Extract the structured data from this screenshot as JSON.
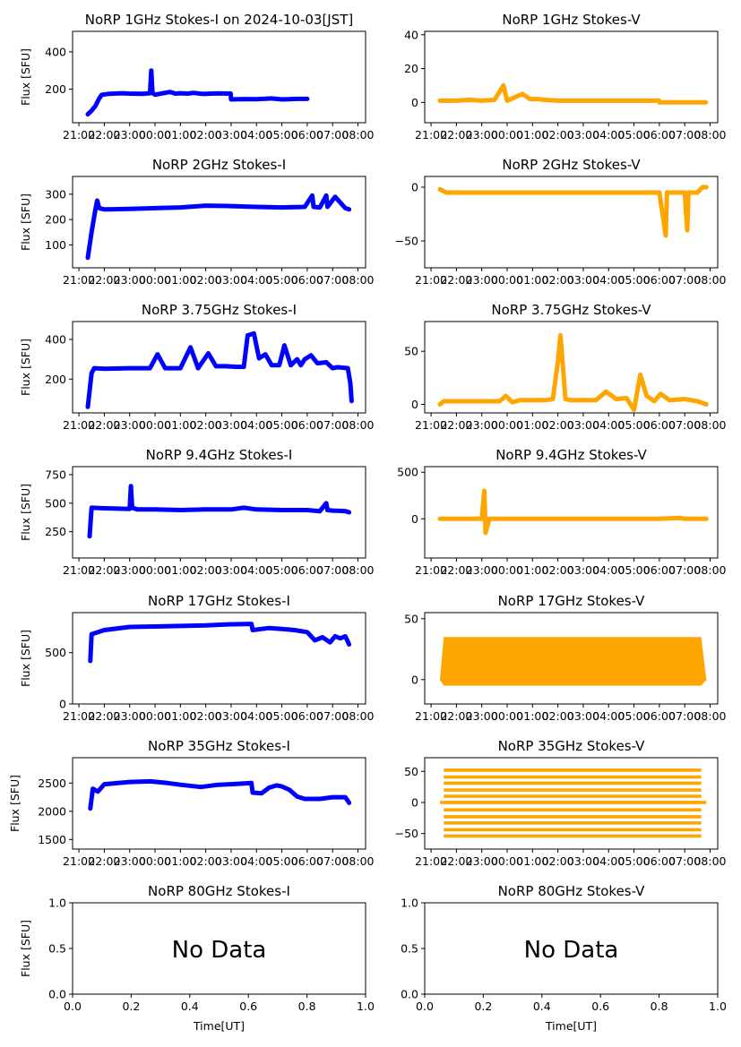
{
  "figure": {
    "time_tick_labels": [
      "21:00",
      "22:00",
      "23:00",
      "00:00",
      "01:00",
      "02:00",
      "03:00",
      "04:00",
      "05:00",
      "06:00",
      "07:00",
      "08:00"
    ],
    "ylabel": "Flux [SFU]",
    "xlabel": "Time[UT]",
    "stokes_i_color": "#0000ff",
    "stokes_v_color": "#ffa500"
  },
  "chart_data": [
    {
      "id": "i1",
      "type": "scatter",
      "title": "NoRP 1GHz Stokes-I on 2024-10-03[JST]",
      "ylabel": "Flux [SFU]",
      "xlim": [
        20.75,
        32.3
      ],
      "ylim": [
        20,
        510
      ],
      "yticks": [
        200,
        400
      ],
      "series": [
        {
          "name": "Stokes-I",
          "color": "#0000ff",
          "x": [
            21.35,
            21.5,
            21.65,
            21.8,
            21.9,
            22.2,
            22.7,
            23.0,
            23.5,
            23.8,
            23.85,
            23.9,
            24.0,
            24.3,
            24.6,
            24.8,
            25.0,
            25.3,
            25.5,
            25.9,
            26.2,
            26.5,
            26.98,
            27.0,
            27.5,
            28.0,
            28.6,
            29.0,
            29.6,
            30.0
          ],
          "y": [
            65,
            85,
            110,
            150,
            170,
            175,
            178,
            176,
            175,
            178,
            300,
            180,
            170,
            178,
            185,
            176,
            178,
            176,
            180,
            174,
            176,
            177,
            176,
            145,
            147,
            146,
            150,
            145,
            148,
            148
          ]
        }
      ]
    },
    {
      "id": "v1",
      "type": "scatter",
      "title": "NoRP 1GHz Stokes-V",
      "ylabel": "",
      "xlim": [
        20.75,
        32.3
      ],
      "ylim": [
        -12,
        42
      ],
      "yticks": [
        0,
        20,
        40
      ],
      "series": [
        {
          "name": "Stokes-V",
          "color": "#ffa500",
          "x": [
            21.35,
            22.0,
            22.5,
            23.0,
            23.5,
            23.85,
            24.0,
            24.3,
            24.6,
            24.9,
            25.2,
            25.5,
            26.0,
            26.5,
            27.0,
            27.5,
            28.0,
            28.5,
            29.0,
            29.99,
            30.0,
            31.0,
            31.83
          ],
          "y": [
            1,
            1,
            1.5,
            1,
            1.5,
            10,
            1,
            3,
            5,
            2,
            2,
            1.5,
            1,
            1,
            1,
            1,
            1,
            1,
            1,
            1,
            0,
            0,
            0
          ]
        }
      ]
    },
    {
      "id": "i2",
      "type": "scatter",
      "title": "NoRP 2GHz Stokes-I",
      "ylabel": "Flux [SFU]",
      "xlim": [
        20.75,
        32.3
      ],
      "ylim": [
        10,
        370
      ],
      "yticks": [
        100,
        200,
        300
      ],
      "series": [
        {
          "name": "Stokes-I",
          "color": "#0000ff",
          "x": [
            21.35,
            21.5,
            21.65,
            21.72,
            21.8,
            22.0,
            23.0,
            24.0,
            25.0,
            26.0,
            27.0,
            28.0,
            29.0,
            29.9,
            30.2,
            30.25,
            30.5,
            30.75,
            30.8,
            31.1,
            31.5,
            31.65
          ],
          "y": [
            50,
            150,
            240,
            275,
            245,
            240,
            242,
            245,
            248,
            255,
            253,
            250,
            248,
            250,
            295,
            250,
            248,
            295,
            250,
            290,
            245,
            240
          ]
        }
      ]
    },
    {
      "id": "v2",
      "type": "scatter",
      "title": "NoRP 2GHz Stokes-V",
      "ylabel": "",
      "xlim": [
        20.75,
        32.3
      ],
      "ylim": [
        -75,
        10
      ],
      "yticks": [
        -50,
        0
      ],
      "series": [
        {
          "name": "Stokes-V",
          "color": "#ffa500",
          "x": [
            21.35,
            21.6,
            22.0,
            23.0,
            24.0,
            25.0,
            26.0,
            27.0,
            28.0,
            29.0,
            30.0,
            30.25,
            30.3,
            31.0,
            31.1,
            31.15,
            31.5,
            31.7,
            31.85
          ],
          "y": [
            -2,
            -5,
            -5,
            -5,
            -5,
            -5,
            -5,
            -5,
            -5,
            -5,
            -5,
            -45,
            -5,
            -5,
            -40,
            -5,
            -5,
            0,
            0
          ]
        }
      ]
    },
    {
      "id": "i3",
      "type": "scatter",
      "title": "NoRP 3.75GHz Stokes-I",
      "ylabel": "Flux [SFU]",
      "xlim": [
        20.75,
        32.3
      ],
      "ylim": [
        30,
        490
      ],
      "yticks": [
        200,
        400
      ],
      "series": [
        {
          "name": "Stokes-I",
          "color": "#0000ff",
          "x": [
            21.35,
            21.5,
            21.6,
            22.0,
            23.0,
            23.8,
            24.1,
            24.4,
            25.0,
            25.4,
            25.7,
            26.1,
            26.4,
            26.8,
            27.2,
            27.5,
            27.65,
            27.9,
            28.1,
            28.35,
            28.6,
            28.9,
            29.1,
            29.35,
            29.6,
            29.75,
            29.9,
            30.15,
            30.4,
            30.75,
            31.0,
            31.2,
            31.6,
            31.7,
            31.75
          ],
          "y": [
            60,
            230,
            255,
            252,
            255,
            255,
            325,
            255,
            255,
            360,
            255,
            330,
            265,
            265,
            262,
            262,
            420,
            430,
            305,
            325,
            270,
            270,
            370,
            270,
            300,
            270,
            300,
            320,
            280,
            285,
            255,
            260,
            255,
            180,
            90
          ]
        }
      ]
    },
    {
      "id": "v3",
      "type": "scatter",
      "title": "NoRP 3.75GHz Stokes-V",
      "ylabel": "",
      "xlim": [
        20.75,
        32.3
      ],
      "ylim": [
        -8,
        78
      ],
      "yticks": [
        0,
        50
      ],
      "series": [
        {
          "name": "Stokes-V",
          "color": "#ffa500",
          "x": [
            21.35,
            21.5,
            22.0,
            23.0,
            23.7,
            23.95,
            24.2,
            24.5,
            25.0,
            25.5,
            25.8,
            26.0,
            26.1,
            26.3,
            26.5,
            27.0,
            27.5,
            27.9,
            28.3,
            28.7,
            29.0,
            29.25,
            29.5,
            29.8,
            30.05,
            30.4,
            31.0,
            31.5,
            31.85
          ],
          "y": [
            0,
            3,
            3,
            3,
            3,
            8,
            2,
            4,
            4,
            4,
            5,
            40,
            65,
            5,
            4,
            4,
            4,
            12,
            5,
            6,
            -5,
            28,
            8,
            3,
            10,
            4,
            5,
            3,
            0
          ]
        }
      ]
    },
    {
      "id": "i4",
      "type": "scatter",
      "title": "NoRP 9.4GHz Stokes-I",
      "ylabel": "Flux [SFU]",
      "xlim": [
        20.75,
        32.3
      ],
      "ylim": [
        20,
        820
      ],
      "yticks": [
        250,
        500,
        750
      ],
      "series": [
        {
          "name": "Stokes-I",
          "color": "#0000ff",
          "x": [
            21.42,
            21.45,
            21.5,
            22.0,
            23.0,
            23.05,
            23.1,
            23.3,
            24.0,
            25.0,
            26.0,
            27.0,
            27.5,
            28.0,
            29.0,
            30.0,
            30.5,
            30.75,
            30.8,
            31.0,
            31.5,
            31.65
          ],
          "y": [
            210,
            300,
            460,
            455,
            450,
            650,
            460,
            445,
            445,
            440,
            445,
            445,
            460,
            445,
            440,
            440,
            430,
            500,
            440,
            435,
            430,
            420
          ]
        }
      ]
    },
    {
      "id": "v4",
      "type": "scatter",
      "title": "NoRP 9.4GHz Stokes-V",
      "ylabel": "",
      "xlim": [
        20.75,
        32.3
      ],
      "ylim": [
        -420,
        560
      ],
      "yticks": [
        0,
        500
      ],
      "series": [
        {
          "name": "Stokes-V",
          "color": "#ffa500",
          "x": [
            21.35,
            22.0,
            23.0,
            23.1,
            23.15,
            23.3,
            24.0,
            25.0,
            26.0,
            27.0,
            28.0,
            29.0,
            30.0,
            30.8,
            31.0,
            31.85
          ],
          "y": [
            0,
            0,
            0,
            300,
            -150,
            0,
            0,
            0,
            0,
            0,
            0,
            0,
            0,
            10,
            0,
            0
          ]
        }
      ]
    },
    {
      "id": "i5",
      "type": "scatter",
      "title": "NoRP 17GHz Stokes-I",
      "ylabel": "Flux [SFU]",
      "xlim": [
        20.75,
        32.3
      ],
      "ylim": [
        0,
        890
      ],
      "yticks": [
        0,
        500
      ],
      "series": [
        {
          "name": "Stokes-I",
          "color": "#0000ff",
          "x": [
            21.45,
            21.5,
            22.0,
            23.0,
            24.0,
            25.0,
            26.0,
            26.8,
            27.8,
            27.85,
            28.5,
            29.0,
            29.5,
            30.0,
            30.3,
            30.6,
            30.9,
            31.1,
            31.3,
            31.5,
            31.65
          ],
          "y": [
            420,
            680,
            720,
            750,
            755,
            760,
            765,
            775,
            780,
            720,
            740,
            730,
            720,
            700,
            620,
            650,
            600,
            660,
            640,
            660,
            580
          ]
        }
      ]
    },
    {
      "id": "v5",
      "type": "scatter",
      "title": "NoRP 17GHz Stokes-V",
      "ylabel": "",
      "xlim": [
        20.75,
        32.3
      ],
      "ylim": [
        -20,
        55
      ],
      "yticks": [
        0,
        50
      ],
      "series": [
        {
          "name": "Stokes-V",
          "color": "#ffa500",
          "band": true,
          "x": [
            21.35,
            21.5,
            31.65,
            31.85
          ],
          "y_low": [
            0,
            -5,
            -5,
            0
          ],
          "y_high": [
            0,
            35,
            35,
            0
          ]
        }
      ]
    },
    {
      "id": "i6",
      "type": "scatter",
      "title": "NoRP 35GHz Stokes-I",
      "ylabel": "Flux [SFU]",
      "xlim": [
        20.75,
        32.3
      ],
      "ylim": [
        1330,
        2950
      ],
      "yticks": [
        1500,
        2000,
        2500
      ],
      "series": [
        {
          "name": "Stokes-I",
          "color": "#0000ff",
          "x": [
            21.45,
            21.55,
            21.75,
            22.0,
            23.0,
            23.8,
            24.5,
            25.0,
            25.8,
            26.5,
            27.0,
            27.8,
            27.85,
            28.2,
            28.5,
            28.8,
            29.0,
            29.3,
            29.6,
            29.9,
            30.5,
            31.0,
            31.5,
            31.65
          ],
          "y": [
            2050,
            2400,
            2350,
            2480,
            2520,
            2530,
            2500,
            2470,
            2430,
            2470,
            2480,
            2500,
            2330,
            2320,
            2420,
            2460,
            2440,
            2380,
            2260,
            2220,
            2220,
            2250,
            2250,
            2150
          ]
        }
      ]
    },
    {
      "id": "v6",
      "type": "scatter",
      "title": "NoRP 35GHz Stokes-V",
      "ylabel": "",
      "xlim": [
        20.75,
        32.3
      ],
      "ylim": [
        -75,
        72
      ],
      "yticks": [
        -50,
        0,
        50
      ],
      "series": [
        {
          "name": "Stokes-V",
          "color": "#ffa500",
          "levels": [
            52,
            41,
            31,
            20,
            10,
            0,
            -12,
            -23,
            -33,
            -44,
            -54
          ],
          "x_range": [
            21.5,
            31.65
          ]
        }
      ]
    },
    {
      "id": "i7",
      "type": "empty",
      "title": "NoRP 80GHz Stokes-I",
      "ylabel": "Flux [SFU]",
      "xlabel": "Time[UT]",
      "xlim": [
        0,
        1
      ],
      "ylim": [
        0,
        1
      ],
      "xticks": [
        "0.0",
        "0.2",
        "0.4",
        "0.6",
        "0.8",
        "1.0"
      ],
      "yticks": [
        "0.0",
        "0.5",
        "1.0"
      ],
      "annotation": "No Data"
    },
    {
      "id": "v7",
      "type": "empty",
      "title": "NoRP 80GHz Stokes-V",
      "ylabel": "",
      "xlabel": "Time[UT]",
      "xlim": [
        0,
        1
      ],
      "ylim": [
        0,
        1
      ],
      "xticks": [
        "0.0",
        "0.2",
        "0.4",
        "0.6",
        "0.8",
        "1.0"
      ],
      "yticks": [
        "0.0",
        "0.5",
        "1.0"
      ],
      "annotation": "No Data"
    }
  ]
}
